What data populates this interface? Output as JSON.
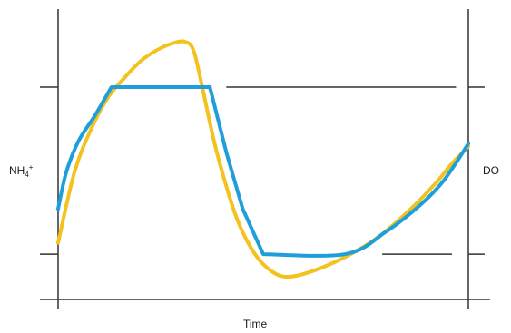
{
  "chart_data": {
    "type": "line",
    "title": "",
    "xlabel": "Time",
    "ylabel_left": "NH₄⁺",
    "ylabel_left_base": "NH",
    "ylabel_left_sub": "4",
    "ylabel_left_sup": "+",
    "ylabel_right": "DO",
    "xlim": [
      0,
      100
    ],
    "ylim": [
      0,
      100
    ],
    "grid": false,
    "tick_labels_shown": false,
    "colors": {
      "nh4": "#f4c21f",
      "do": "#1e9fdc",
      "axes": "#333333"
    },
    "reference_levels": {
      "upper": 75,
      "lower": 16
    },
    "series": [
      {
        "key": "nh4",
        "points": [
          [
            0,
            20
          ],
          [
            4,
            45
          ],
          [
            8,
            60
          ],
          [
            12,
            71
          ],
          [
            16,
            78
          ],
          [
            20,
            84
          ],
          [
            24,
            88
          ],
          [
            28,
            90.5
          ],
          [
            31,
            91
          ],
          [
            33,
            88
          ],
          [
            35,
            76
          ],
          [
            38,
            56
          ],
          [
            41,
            40
          ],
          [
            44,
            27
          ],
          [
            48,
            16
          ],
          [
            52,
            10
          ],
          [
            56,
            8
          ],
          [
            62,
            10
          ],
          [
            70,
            15
          ],
          [
            78,
            22
          ],
          [
            86,
            32
          ],
          [
            92,
            41
          ],
          [
            96,
            48
          ],
          [
            100,
            54
          ]
        ]
      },
      {
        "key": "do",
        "points": [
          [
            0,
            32
          ],
          [
            2,
            45
          ],
          [
            5,
            56
          ],
          [
            9,
            65
          ],
          [
            13,
            75
          ],
          [
            37,
            75
          ],
          [
            41,
            52
          ],
          [
            45,
            32
          ],
          [
            50,
            16
          ],
          [
            70,
            16
          ],
          [
            80,
            24
          ],
          [
            88,
            33
          ],
          [
            94,
            42
          ],
          [
            100,
            55
          ]
        ]
      }
    ],
    "reference_segments": [
      {
        "key": "upper-ref",
        "x": [
          41,
          97
        ],
        "y": 75
      },
      {
        "key": "lower-ref",
        "x": [
          79,
          96
        ],
        "y": 16
      }
    ]
  }
}
